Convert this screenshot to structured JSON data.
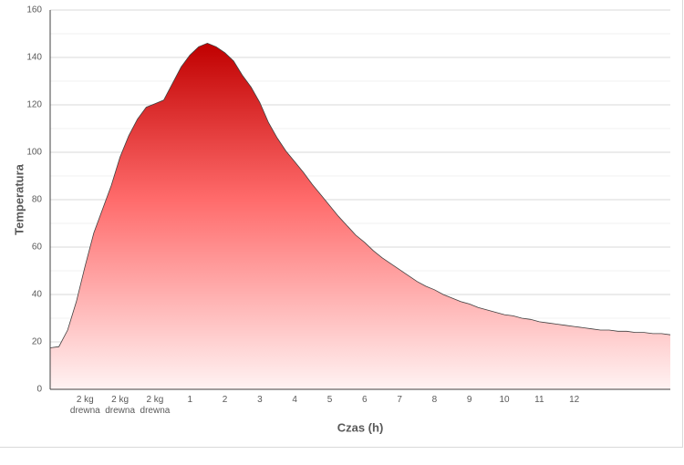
{
  "chart_data": {
    "type": "area",
    "x_label": "Czas (h)",
    "y_label": "Temperatura",
    "color": "#c00000",
    "categories": [
      null,
      null,
      null,
      null,
      "2 kg drewna",
      null,
      null,
      null,
      "2 kg drewna",
      null,
      null,
      null,
      "2 kg drewna",
      null,
      null,
      null,
      "1",
      null,
      null,
      null,
      "2",
      null,
      null,
      null,
      "3",
      null,
      null,
      null,
      "4",
      null,
      null,
      null,
      "5",
      null,
      null,
      null,
      "6",
      null,
      null,
      null,
      "7",
      null,
      null,
      null,
      "8",
      null,
      null,
      null,
      "9",
      null,
      null,
      null,
      "10",
      null,
      null,
      null,
      "11",
      null,
      null,
      null,
      "12",
      null,
      null,
      null,
      null,
      null,
      null,
      null,
      null,
      null,
      null,
      null
    ],
    "values": [
      17.5,
      18,
      25,
      37,
      52,
      66,
      76,
      86,
      98,
      107,
      114,
      119,
      120.5,
      122,
      129,
      136,
      141,
      144.5,
      146,
      144.5,
      142,
      138.5,
      132.5,
      127.5,
      121,
      112.5,
      106,
      100.5,
      96,
      91.5,
      86.5,
      82,
      77.5,
      73,
      69,
      65,
      62,
      58.5,
      55.5,
      53,
      50.5,
      48,
      45.5,
      43.5,
      42,
      40,
      38.5,
      37,
      36,
      34.5,
      33.5,
      32.5,
      31.5,
      31,
      30,
      29.5,
      28.5,
      28,
      27.5,
      27,
      26.5,
      26,
      25.5,
      25,
      25,
      24.5,
      24.5,
      24,
      24,
      23.5,
      23.5,
      23
    ],
    "ylim": [
      0,
      160
    ],
    "yticks": [
      0,
      20,
      40,
      60,
      80,
      100,
      120,
      140,
      160
    ],
    "y_minor_ticks": [
      10,
      30,
      50,
      70,
      90,
      110,
      130,
      150
    ],
    "grid": true
  }
}
